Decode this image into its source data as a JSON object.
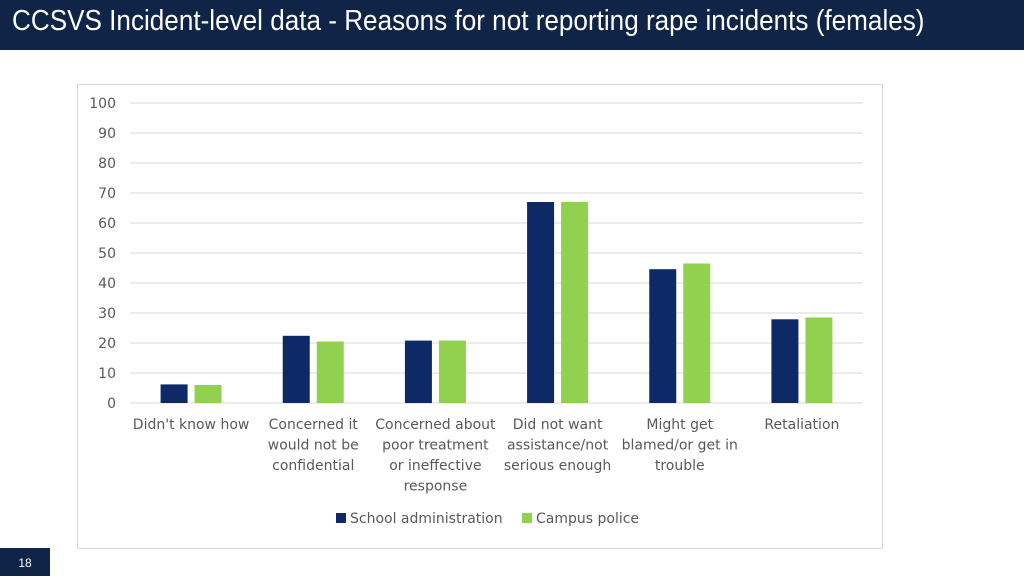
{
  "slide": {
    "title": "CCSVS Incident-level data - Reasons for not reporting rape incidents (females)",
    "page_number": "18"
  },
  "colors": {
    "header_bg": "#0f2447",
    "school_administration": "#0d2a66",
    "campus_police": "#92d050",
    "grid": "#d9d9d9",
    "text": "#595959"
  },
  "chart_data": {
    "type": "bar",
    "title": "",
    "xlabel": "",
    "ylabel": "",
    "ylim": [
      0,
      100
    ],
    "yticks": [
      0,
      10,
      20,
      30,
      40,
      50,
      60,
      70,
      80,
      90,
      100
    ],
    "grid": true,
    "legend_position": "bottom",
    "categories": [
      [
        "Didn't know how"
      ],
      [
        "Concerned it",
        "would not be",
        "confidential"
      ],
      [
        "Concerned about",
        "poor treatment",
        "or ineffective",
        "response"
      ],
      [
        "Did not want",
        "assistance/not",
        "serious enough"
      ],
      [
        "Might get",
        "blamed/or get in",
        "trouble"
      ],
      [
        "Retaliation"
      ]
    ],
    "series": [
      {
        "name": "School administration",
        "values": [
          6.2,
          22.4,
          20.8,
          67.0,
          44.6,
          27.9
        ]
      },
      {
        "name": "Campus police",
        "values": [
          6.0,
          20.5,
          20.8,
          67.0,
          46.5,
          28.5
        ]
      }
    ]
  }
}
